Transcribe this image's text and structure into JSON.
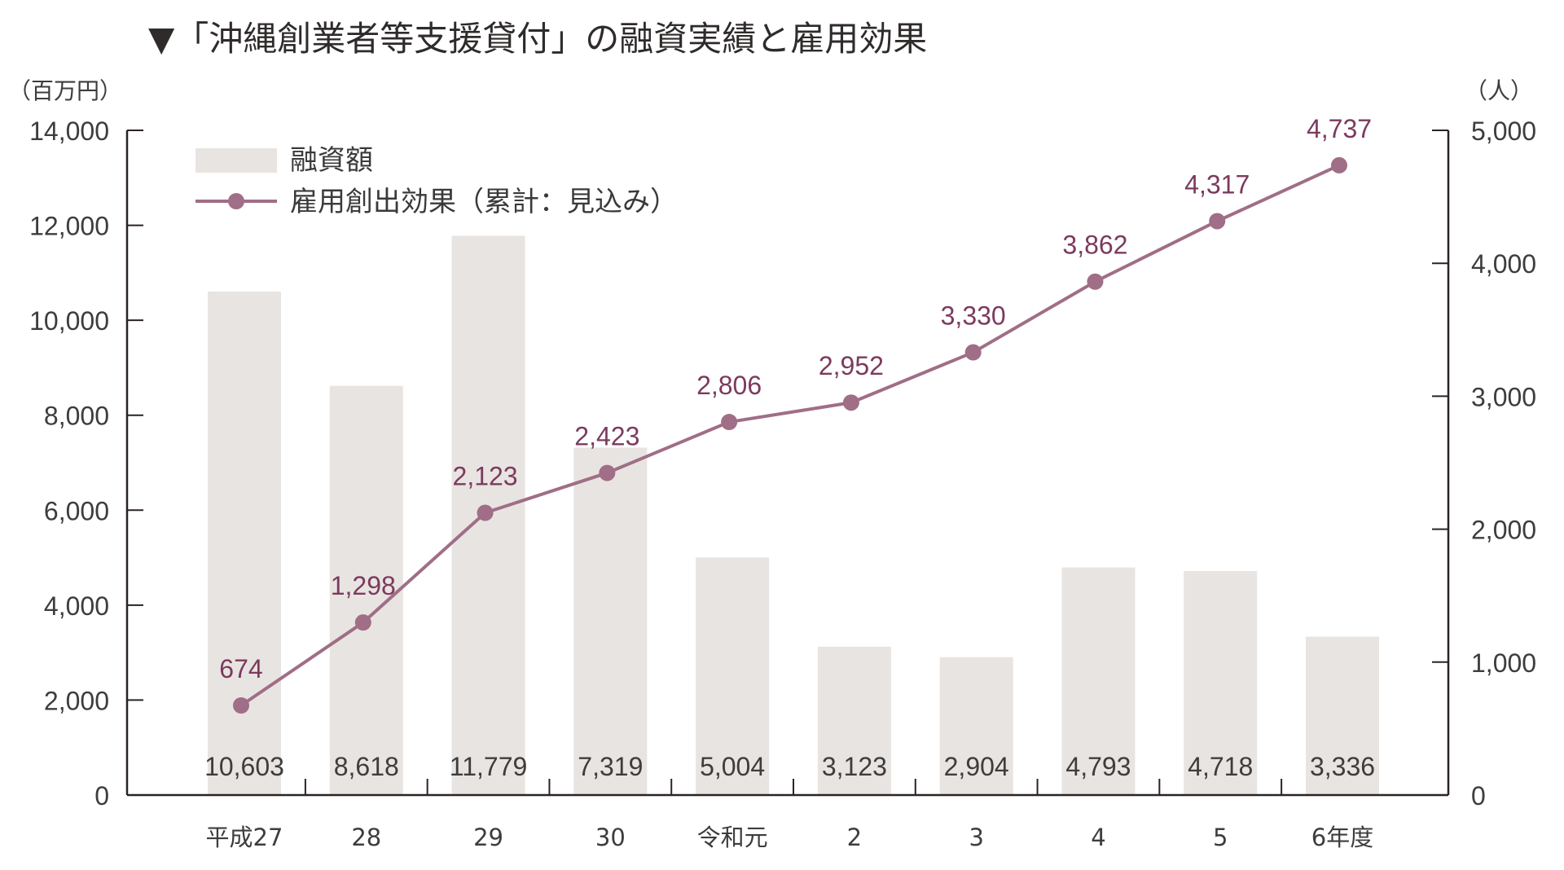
{
  "chart_data": {
    "type": "bar+line",
    "title": "▼「沖縄創業者等支援貸付」の融資実績と雇用効果",
    "categories": [
      "平成27",
      "28",
      "29",
      "30",
      "令和元",
      "2",
      "3",
      "4",
      "5",
      "6年度"
    ],
    "series": [
      {
        "name": "融資額",
        "type": "bar",
        "axis": "left",
        "values": [
          10603,
          8618,
          11779,
          7319,
          5004,
          3123,
          2904,
          4793,
          4718,
          3336
        ],
        "labels": [
          "10,603",
          "8,618",
          "11,779",
          "7,319",
          "5,004",
          "3,123",
          "2,904",
          "4,793",
          "4,718",
          "3,336"
        ],
        "color": "#e8e4e1"
      },
      {
        "name": "雇用創出効果（累計：見込み）",
        "type": "line",
        "axis": "right",
        "values": [
          674,
          1298,
          2123,
          2423,
          2806,
          2952,
          3330,
          3862,
          4317,
          4737
        ],
        "labels": [
          "674",
          "1,298",
          "2,123",
          "2,423",
          "2,806",
          "2,952",
          "3,330",
          "3,862",
          "4,317",
          "4,737"
        ],
        "color": "#a06e86",
        "label_color": "#7c3a5e"
      }
    ],
    "left_axis": {
      "unit": "（百万円）",
      "ylim": [
        0,
        14000
      ],
      "ticks": [
        0,
        2000,
        4000,
        6000,
        8000,
        10000,
        12000,
        14000
      ],
      "tick_labels": [
        "0",
        "2,000",
        "4,000",
        "6,000",
        "8,000",
        "10,000",
        "12,000",
        "14,000"
      ]
    },
    "right_axis": {
      "unit": "（人）",
      "ylim": [
        0,
        5000
      ],
      "ticks": [
        0,
        1000,
        2000,
        3000,
        4000,
        5000
      ],
      "tick_labels": [
        "0",
        "1,000",
        "2,000",
        "3,000",
        "4,000",
        "5,000"
      ]
    },
    "legend": {
      "placement": "top-left",
      "entries": [
        "融資額",
        "雇用創出効果（累計：見込み）"
      ]
    },
    "grid": false
  }
}
